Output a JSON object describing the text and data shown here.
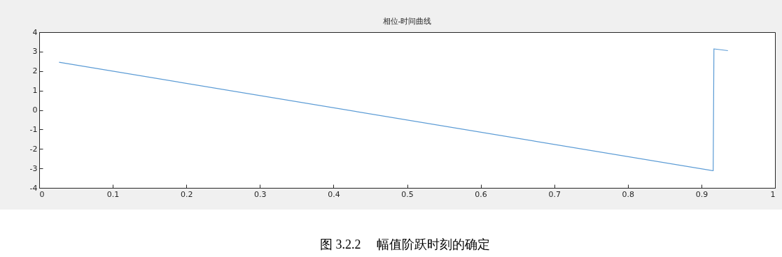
{
  "chart_data": {
    "type": "line",
    "title": "相位-时间曲线",
    "x": [
      0.027,
      0.916,
      0.917,
      0.936
    ],
    "series": [
      {
        "color": "#5b9bd5",
        "values": [
          2.45,
          -3.12,
          3.14,
          3.05
        ]
      }
    ],
    "xlim": [
      0,
      1
    ],
    "xticks": [
      0,
      0.1,
      0.2,
      0.3,
      0.4,
      0.5,
      0.6,
      0.7,
      0.8,
      0.9,
      1
    ],
    "ylim": [
      -4,
      4
    ],
    "yticks": [
      -4,
      -3,
      -2,
      -1,
      0,
      1,
      2,
      3,
      4
    ],
    "grid": false,
    "annotations": [
      "图 3.2.2     幅值阶跃时刻的确定"
    ]
  }
}
